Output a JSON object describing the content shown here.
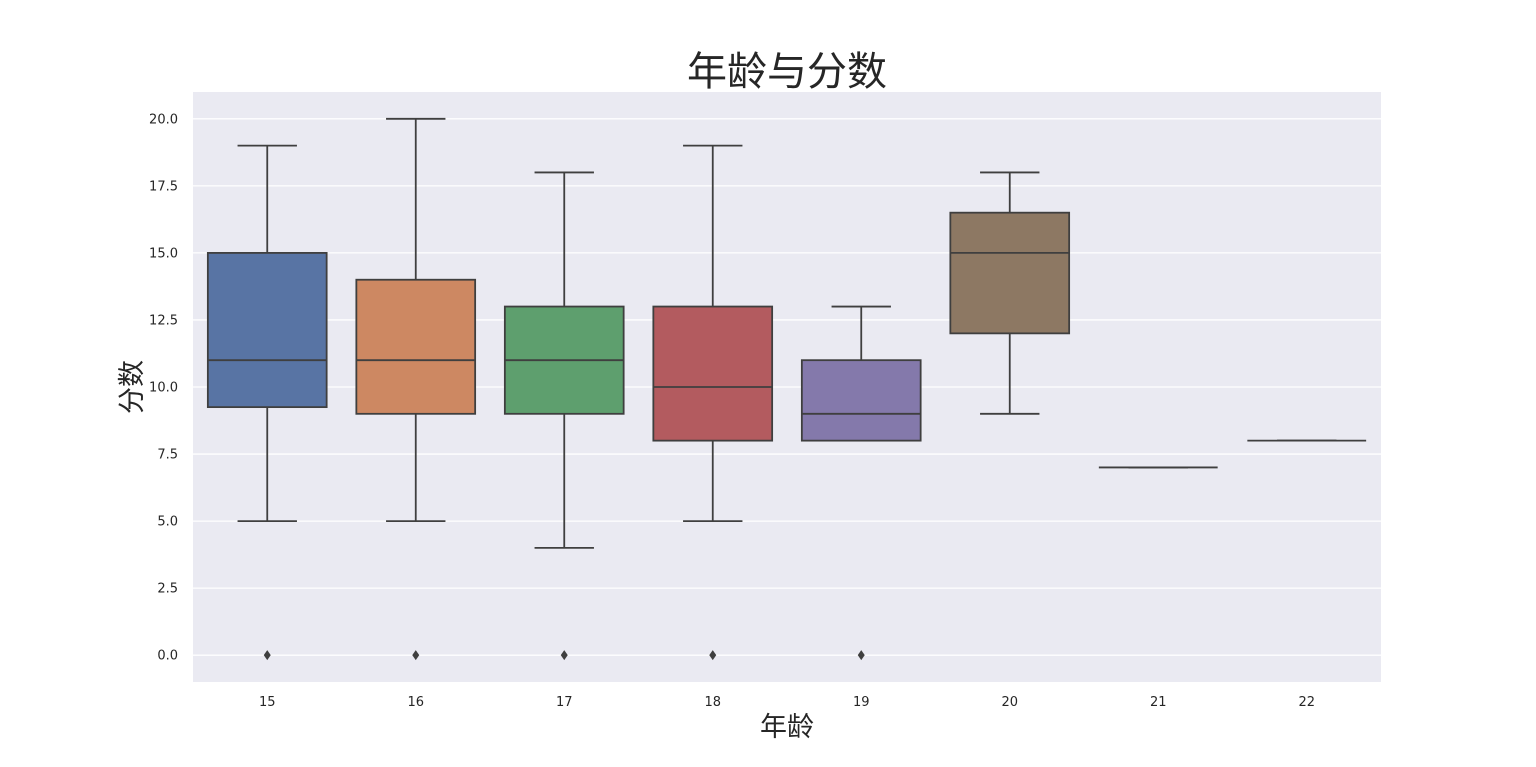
{
  "chart_data": {
    "type": "box",
    "title": "年龄与分数",
    "xlabel": "年龄",
    "ylabel": "分数",
    "categories": [
      "15",
      "16",
      "17",
      "18",
      "19",
      "20",
      "21",
      "22"
    ],
    "ylim": [
      -1,
      21
    ],
    "yticks": [
      "0.0",
      "2.5",
      "5.0",
      "7.5",
      "10.0",
      "12.5",
      "15.0",
      "17.5",
      "20.0"
    ],
    "ytick_values": [
      0,
      2.5,
      5,
      7.5,
      10,
      12.5,
      15,
      17.5,
      20
    ],
    "grid": true,
    "boxes": [
      {
        "category": "15",
        "whisker_low": 5,
        "q1": 9.25,
        "median": 11,
        "q3": 15,
        "whisker_high": 19,
        "outliers": [
          0
        ],
        "color": "#5874a4"
      },
      {
        "category": "16",
        "whisker_low": 5,
        "q1": 9,
        "median": 11,
        "q3": 14,
        "whisker_high": 20,
        "outliers": [
          0
        ],
        "color": "#cd8862"
      },
      {
        "category": "17",
        "whisker_low": 4,
        "q1": 9,
        "median": 11,
        "q3": 13,
        "whisker_high": 18,
        "outliers": [
          0
        ],
        "color": "#5e9f6e"
      },
      {
        "category": "18",
        "whisker_low": 5,
        "q1": 8,
        "median": 10,
        "q3": 13,
        "whisker_high": 19,
        "outliers": [
          0
        ],
        "color": "#b35b5f"
      },
      {
        "category": "19",
        "whisker_low": 8,
        "q1": 8,
        "median": 9,
        "q3": 11,
        "whisker_high": 13,
        "outliers": [
          0
        ],
        "color": "#8479ab"
      },
      {
        "category": "20",
        "whisker_low": 9,
        "q1": 12,
        "median": 15,
        "q3": 16.5,
        "whisker_high": 18,
        "outliers": [],
        "color": "#8d7863"
      },
      {
        "category": "21",
        "whisker_low": 7,
        "q1": 7,
        "median": 7,
        "q3": 7,
        "whisker_high": 7,
        "outliers": [],
        "color": "#cc89bf"
      },
      {
        "category": "22",
        "whisker_low": 8,
        "q1": 8,
        "median": 8,
        "q3": 8,
        "whisker_high": 8,
        "outliers": [],
        "color": "#8c8c8c"
      }
    ],
    "colors": {
      "plot_background": "#eaeaf2",
      "grid": "#ffffff",
      "box_edge": "#3f3f3f"
    }
  }
}
